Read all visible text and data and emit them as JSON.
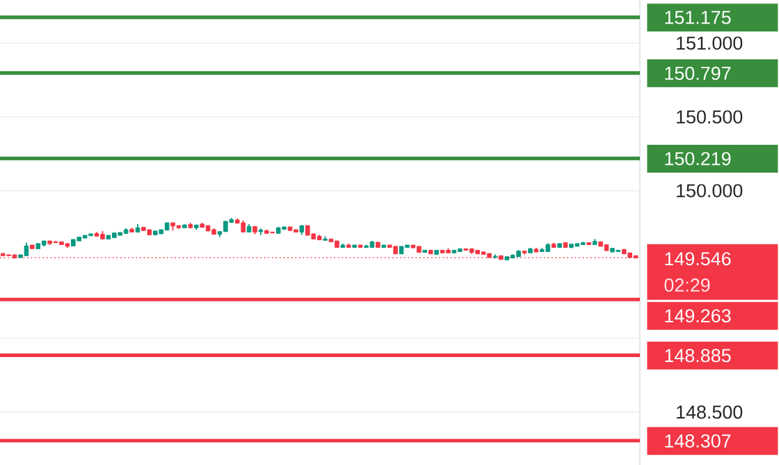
{
  "chart_data": {
    "type": "candlestick",
    "categories": [
      null,
      null,
      null,
      null,
      null,
      null,
      null,
      null,
      null,
      null,
      null,
      null,
      null,
      null,
      null,
      null,
      null,
      null,
      null,
      null,
      null,
      null,
      null,
      null,
      null,
      null,
      null,
      null,
      null,
      null,
      null,
      null,
      null,
      null,
      null,
      null,
      null,
      null,
      null,
      null,
      null,
      null,
      null,
      null,
      null,
      null,
      null,
      null,
      null,
      null,
      null,
      null,
      null,
      null,
      null,
      null,
      null,
      null,
      null,
      null,
      null,
      null,
      null,
      null,
      null,
      null,
      null,
      null,
      null,
      null,
      null,
      null,
      null,
      null,
      null,
      null,
      null,
      null,
      null,
      null,
      null,
      null,
      null,
      null,
      null,
      null,
      null,
      null,
      null,
      null,
      null,
      null,
      null,
      null,
      null,
      null,
      null,
      null,
      null,
      null,
      null,
      null,
      null,
      null,
      null,
      null,
      null,
      null,
      null
    ],
    "ohlc": [
      [
        149.575,
        149.575,
        149.56,
        149.56
      ],
      [
        149.566,
        149.566,
        149.56,
        149.56
      ],
      [
        149.566,
        149.566,
        149.544,
        149.544
      ],
      [
        149.547,
        149.566,
        149.547,
        149.566
      ],
      [
        149.56,
        149.648,
        149.56,
        149.626
      ],
      [
        149.632,
        149.632,
        149.607,
        149.607
      ],
      [
        149.607,
        149.642,
        149.607,
        149.642
      ],
      [
        149.632,
        149.66,
        149.623,
        149.66
      ],
      [
        149.66,
        149.66,
        149.632,
        149.642
      ],
      [
        149.654,
        149.66,
        149.648,
        149.648
      ],
      [
        149.654,
        149.654,
        149.635,
        149.635
      ],
      [
        149.642,
        149.642,
        149.613,
        149.623
      ],
      [
        149.626,
        149.67,
        149.626,
        149.67
      ],
      [
        149.66,
        149.686,
        149.66,
        149.686
      ],
      [
        149.679,
        149.698,
        149.679,
        149.698
      ],
      [
        149.695,
        149.708,
        149.695,
        149.708
      ],
      [
        149.711,
        149.72,
        149.692,
        149.692
      ],
      [
        149.705,
        149.727,
        149.673,
        149.673
      ],
      [
        149.673,
        149.698,
        149.673,
        149.698
      ],
      [
        149.682,
        149.714,
        149.682,
        149.714
      ],
      [
        149.698,
        149.717,
        149.698,
        149.717
      ],
      [
        149.711,
        149.745,
        149.711,
        149.736
      ],
      [
        149.739,
        149.749,
        149.72,
        149.72
      ],
      [
        149.72,
        149.774,
        149.72,
        149.749
      ],
      [
        149.752,
        149.752,
        149.73,
        149.73
      ],
      [
        149.736,
        149.736,
        149.701,
        149.701
      ],
      [
        149.701,
        149.727,
        149.701,
        149.727
      ],
      [
        149.708,
        149.736,
        149.708,
        149.736
      ],
      [
        149.733,
        149.783,
        149.733,
        149.783
      ],
      [
        149.783,
        149.783,
        149.73,
        149.761
      ],
      [
        149.764,
        149.764,
        149.742,
        149.749
      ],
      [
        149.749,
        149.774,
        149.749,
        149.768
      ],
      [
        149.771,
        149.783,
        149.749,
        149.749
      ],
      [
        149.749,
        149.768,
        149.736,
        149.768
      ],
      [
        149.774,
        149.783,
        149.752,
        149.752
      ],
      [
        149.764,
        149.764,
        149.727,
        149.727
      ],
      [
        149.736,
        149.745,
        149.705,
        149.705
      ],
      [
        149.705,
        149.723,
        149.686,
        149.723
      ],
      [
        149.723,
        149.793,
        149.723,
        149.793
      ],
      [
        149.786,
        149.815,
        149.786,
        149.805
      ],
      [
        149.802,
        149.812,
        149.78,
        149.78
      ],
      [
        149.783,
        149.799,
        149.72,
        149.72
      ],
      [
        149.72,
        149.774,
        149.72,
        149.758
      ],
      [
        149.758,
        149.758,
        149.705,
        149.72
      ],
      [
        149.723,
        149.745,
        149.701,
        149.733
      ],
      [
        149.73,
        149.736,
        149.711,
        149.711
      ],
      [
        149.72,
        149.72,
        149.714,
        149.714
      ],
      [
        149.711,
        149.755,
        149.711,
        149.749
      ],
      [
        149.739,
        149.755,
        149.739,
        149.755
      ],
      [
        149.755,
        149.755,
        149.73,
        149.73
      ],
      [
        149.736,
        149.736,
        149.72,
        149.72
      ],
      [
        149.72,
        149.764,
        149.701,
        149.764
      ],
      [
        149.764,
        149.764,
        149.698,
        149.698
      ],
      [
        149.708,
        149.708,
        149.673,
        149.673
      ],
      [
        149.692,
        149.701,
        149.667,
        149.667
      ],
      [
        149.664,
        149.692,
        149.664,
        149.673
      ],
      [
        149.673,
        149.673,
        149.654,
        149.654
      ],
      [
        149.66,
        149.66,
        149.616,
        149.616
      ],
      [
        149.616,
        149.642,
        149.616,
        149.632
      ],
      [
        149.632,
        149.642,
        149.616,
        149.616
      ],
      [
        149.616,
        149.632,
        149.616,
        149.632
      ],
      [
        149.632,
        149.632,
        149.616,
        149.616
      ],
      [
        149.616,
        149.635,
        149.616,
        149.626
      ],
      [
        149.616,
        149.66,
        149.616,
        149.654
      ],
      [
        149.651,
        149.651,
        149.616,
        149.616
      ],
      [
        149.616,
        149.632,
        149.616,
        149.632
      ],
      [
        149.632,
        149.632,
        149.616,
        149.616
      ],
      [
        149.623,
        149.623,
        149.572,
        149.572
      ],
      [
        149.572,
        149.623,
        149.572,
        149.623
      ],
      [
        149.616,
        149.632,
        149.616,
        149.632
      ],
      [
        149.632,
        149.632,
        149.613,
        149.613
      ],
      [
        149.623,
        149.623,
        149.582,
        149.582
      ],
      [
        149.582,
        149.597,
        149.582,
        149.597
      ],
      [
        149.597,
        149.597,
        149.572,
        149.572
      ],
      [
        149.569,
        149.597,
        149.569,
        149.597
      ],
      [
        149.597,
        149.597,
        149.579,
        149.579
      ],
      [
        149.597,
        149.61,
        149.579,
        149.579
      ],
      [
        149.579,
        149.597,
        149.579,
        149.597
      ],
      [
        149.588,
        149.607,
        149.588,
        149.607
      ],
      [
        149.607,
        149.607,
        149.597,
        149.597
      ],
      [
        149.607,
        149.607,
        149.572,
        149.582
      ],
      [
        149.597,
        149.597,
        149.572,
        149.572
      ],
      [
        149.585,
        149.591,
        149.569,
        149.569
      ],
      [
        149.575,
        149.575,
        149.547,
        149.547
      ],
      [
        149.55,
        149.569,
        149.541,
        149.556
      ],
      [
        149.56,
        149.56,
        149.534,
        149.534
      ],
      [
        149.531,
        149.553,
        149.531,
        149.553
      ],
      [
        149.544,
        149.569,
        149.544,
        149.563
      ],
      [
        149.553,
        149.597,
        149.553,
        149.591
      ],
      [
        149.591,
        149.591,
        149.569,
        149.579
      ],
      [
        149.579,
        149.613,
        149.579,
        149.607
      ],
      [
        149.604,
        149.613,
        149.585,
        149.585
      ],
      [
        149.588,
        149.613,
        149.588,
        149.601
      ],
      [
        149.588,
        149.645,
        149.588,
        149.635
      ],
      [
        149.638,
        149.648,
        149.616,
        149.616
      ],
      [
        149.616,
        149.642,
        149.616,
        149.642
      ],
      [
        149.648,
        149.648,
        149.616,
        149.616
      ],
      [
        149.616,
        149.638,
        149.61,
        149.638
      ],
      [
        149.623,
        149.642,
        149.623,
        149.642
      ],
      [
        149.635,
        149.654,
        149.635,
        149.648
      ],
      [
        149.648,
        149.648,
        149.635,
        149.635
      ],
      [
        149.635,
        149.673,
        149.635,
        149.657
      ],
      [
        149.654,
        149.654,
        149.623,
        149.623
      ],
      [
        149.635,
        149.635,
        149.594,
        149.594
      ],
      [
        149.585,
        149.61,
        149.585,
        149.61
      ],
      [
        149.588,
        149.597,
        149.588,
        149.597
      ],
      [
        149.601,
        149.607,
        149.572,
        149.572
      ],
      [
        149.579,
        149.579,
        149.547,
        149.547
      ],
      [
        149.56,
        149.56,
        149.541,
        149.546
      ]
    ],
    "colors": [
      "#f23645",
      "#f23645",
      "#f23645",
      "#089981",
      "#089981",
      "#f23645",
      "#089981",
      "#089981",
      "#f23645",
      "#f23645",
      "#f23645",
      "#f23645",
      "#089981",
      "#089981",
      "#089981",
      "#089981",
      "#f23645",
      "#f23645",
      "#089981",
      "#089981",
      "#089981",
      "#089981",
      "#f23645",
      "#089981",
      "#f23645",
      "#f23645",
      "#089981",
      "#089981",
      "#089981",
      "#f23645",
      "#f23645",
      "#089981",
      "#f23645",
      "#089981",
      "#f23645",
      "#f23645",
      "#f23645",
      "#089981",
      "#089981",
      "#089981",
      "#f23645",
      "#f23645",
      "#089981",
      "#f23645",
      "#089981",
      "#f23645",
      "#f23645",
      "#089981",
      "#089981",
      "#f23645",
      "#f23645",
      "#089981",
      "#f23645",
      "#f23645",
      "#f23645",
      "#089981",
      "#f23645",
      "#f23645",
      "#089981",
      "#f23645",
      "#089981",
      "#f23645",
      "#089981",
      "#089981",
      "#f23645",
      "#089981",
      "#f23645",
      "#f23645",
      "#089981",
      "#089981",
      "#f23645",
      "#f23645",
      "#089981",
      "#f23645",
      "#089981",
      "#f23645",
      "#f23645",
      "#089981",
      "#089981",
      "#f23645",
      "#f23645",
      "#f23645",
      "#f23645",
      "#f23645",
      "#089981",
      "#f23645",
      "#089981",
      "#089981",
      "#089981",
      "#f23645",
      "#089981",
      "#f23645",
      "#089981",
      "#089981",
      "#f23645",
      "#089981",
      "#f23645",
      "#089981",
      "#089981",
      "#089981",
      "#f23645",
      "#089981",
      "#f23645",
      "#f23645",
      "#089981",
      "#089981",
      "#f23645",
      "#f23645",
      "#f23645"
    ],
    "ylim": [
      148.142,
      151.292
    ],
    "yticks": [
      {
        "value": 148.5,
        "label": "148.500"
      },
      {
        "value": 149.0,
        "label": null
      },
      {
        "value": 150.0,
        "label": "150.000"
      },
      {
        "value": 150.5,
        "label": "150.500"
      },
      {
        "value": 151.0,
        "label": "151.000"
      }
    ],
    "tick_labels": "y",
    "grid": "y",
    "ref_lines": [
      {
        "axis": "y",
        "value": 151.175,
        "label": "151.175",
        "color": "#388e3c"
      },
      {
        "axis": "y",
        "value": 150.797,
        "label": "150.797",
        "color": "#388e3c"
      },
      {
        "axis": "y",
        "value": 150.219,
        "label": "150.219",
        "color": "#388e3c"
      },
      {
        "axis": "y",
        "value": 149.546,
        "label": "149.546",
        "color": "#f23645",
        "line_style": "dotted"
      },
      {
        "axis": "y",
        "value": 149.263,
        "label": "149.263",
        "color": "#f23645"
      },
      {
        "axis": "y",
        "value": 148.885,
        "label": "148.885",
        "color": "#f23645"
      },
      {
        "axis": "y",
        "value": 148.307,
        "label": "148.307",
        "color": "#f23645"
      }
    ],
    "annotations": [
      "02:29"
    ]
  }
}
